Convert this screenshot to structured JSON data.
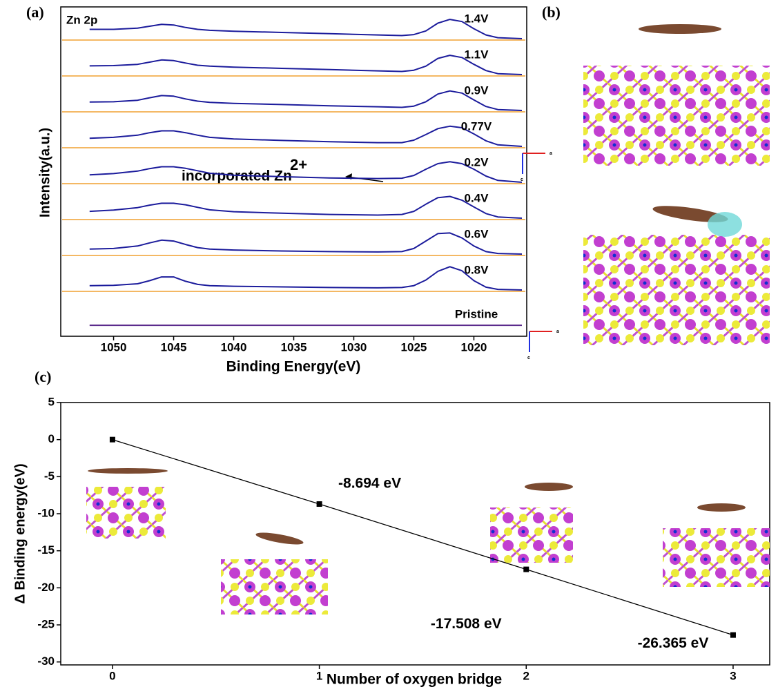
{
  "chart_data": [
    {
      "type": "spectra",
      "label": "(a)",
      "annotation": "Zn 2p",
      "callout": {
        "text": "incorporated Zn",
        "superscript": "2+"
      },
      "xlabel": "Binding Energy(eV)",
      "ylabel": "Intensity(a.u.)",
      "xlim": [
        1054.4,
        1015.6
      ],
      "xticks": [
        1050,
        1045,
        1040,
        1035,
        1030,
        1025,
        1020
      ],
      "x": [
        1052,
        1050,
        1048,
        1047,
        1046,
        1045,
        1044,
        1043,
        1042,
        1040,
        1036,
        1032,
        1028,
        1026,
        1025,
        1024,
        1023,
        1022,
        1021,
        1020,
        1019,
        1018,
        1016
      ],
      "series": [
        {
          "name": "1.4V",
          "color": "#1c1c9c",
          "values": [
            0.3,
            0.3,
            0.34,
            0.4,
            0.46,
            0.44,
            0.36,
            0.3,
            0.27,
            0.24,
            0.2,
            0.16,
            0.12,
            0.1,
            0.13,
            0.25,
            0.5,
            0.62,
            0.55,
            0.32,
            0.12,
            0.03,
            0.0
          ]
        },
        {
          "name": "1.1V",
          "color": "#1c1c9c",
          "values": [
            0.28,
            0.29,
            0.33,
            0.4,
            0.47,
            0.45,
            0.37,
            0.3,
            0.27,
            0.24,
            0.2,
            0.16,
            0.12,
            0.1,
            0.14,
            0.27,
            0.52,
            0.62,
            0.55,
            0.33,
            0.13,
            0.03,
            0.0
          ]
        },
        {
          "name": "0.9V",
          "color": "#1c1c9c",
          "values": [
            0.27,
            0.28,
            0.33,
            0.41,
            0.48,
            0.46,
            0.37,
            0.3,
            0.26,
            0.23,
            0.19,
            0.15,
            0.12,
            0.1,
            0.14,
            0.28,
            0.53,
            0.63,
            0.56,
            0.34,
            0.13,
            0.03,
            0.0
          ]
        },
        {
          "name": "0.77V",
          "color": "#1c1c9c",
          "values": [
            0.26,
            0.29,
            0.36,
            0.44,
            0.5,
            0.5,
            0.44,
            0.36,
            0.29,
            0.24,
            0.19,
            0.15,
            0.12,
            0.12,
            0.2,
            0.38,
            0.57,
            0.65,
            0.6,
            0.4,
            0.18,
            0.05,
            0.0
          ]
        },
        {
          "name": "0.2V",
          "color": "#1c1c9c",
          "values": [
            0.24,
            0.28,
            0.36,
            0.44,
            0.5,
            0.5,
            0.45,
            0.37,
            0.29,
            0.23,
            0.18,
            0.14,
            0.12,
            0.13,
            0.22,
            0.42,
            0.6,
            0.66,
            0.6,
            0.42,
            0.2,
            0.06,
            0.0
          ]
        },
        {
          "name": "0.4V",
          "color": "#1c1c9c",
          "values": [
            0.22,
            0.26,
            0.34,
            0.42,
            0.48,
            0.48,
            0.43,
            0.35,
            0.27,
            0.21,
            0.16,
            0.12,
            0.1,
            0.12,
            0.22,
            0.45,
            0.66,
            0.7,
            0.58,
            0.36,
            0.15,
            0.04,
            0.0
          ]
        },
        {
          "name": "0.6V",
          "color": "#1c1c9c",
          "values": [
            0.16,
            0.18,
            0.26,
            0.36,
            0.45,
            0.42,
            0.31,
            0.21,
            0.16,
            0.13,
            0.1,
            0.08,
            0.07,
            0.08,
            0.18,
            0.42,
            0.66,
            0.68,
            0.52,
            0.26,
            0.08,
            0.02,
            0.0
          ]
        },
        {
          "name": "0.8V",
          "color": "#1c1c9c",
          "values": [
            0.14,
            0.15,
            0.2,
            0.3,
            0.42,
            0.42,
            0.28,
            0.18,
            0.14,
            0.12,
            0.1,
            0.08,
            0.07,
            0.08,
            0.14,
            0.32,
            0.6,
            0.75,
            0.62,
            0.3,
            0.09,
            0.02,
            0.0
          ]
        },
        {
          "name": "Pristine",
          "color": "#5b2a8c",
          "values": [
            0.02,
            0.02,
            0.02,
            0.02,
            0.02,
            0.02,
            0.02,
            0.02,
            0.02,
            0.02,
            0.02,
            0.02,
            0.02,
            0.02,
            0.02,
            0.02,
            0.02,
            0.02,
            0.02,
            0.02,
            0.02,
            0.02,
            0.02
          ]
        }
      ]
    },
    {
      "type": "line",
      "label": "(c)",
      "color": "#000000",
      "xlabel": "Number of oxygen bridge",
      "ylabel": "Δ Binding energy(eV)",
      "x": [
        0,
        1,
        2,
        3
      ],
      "values": [
        0,
        -8.694,
        -17.508,
        -26.365
      ],
      "value_labels": [
        null,
        "-8.694 eV",
        "-17.508 eV",
        "-26.365 eV"
      ],
      "xlim": [
        -0.25,
        3.177
      ],
      "xticks": [
        0,
        1,
        2,
        3
      ],
      "ylim": [
        -30.4,
        5
      ],
      "yticks": [
        -30,
        -25,
        -20,
        -15,
        -10,
        -5,
        0,
        5
      ]
    }
  ],
  "image_panel": {
    "label": "(b)",
    "axis_labels": [
      "a",
      "c"
    ]
  }
}
